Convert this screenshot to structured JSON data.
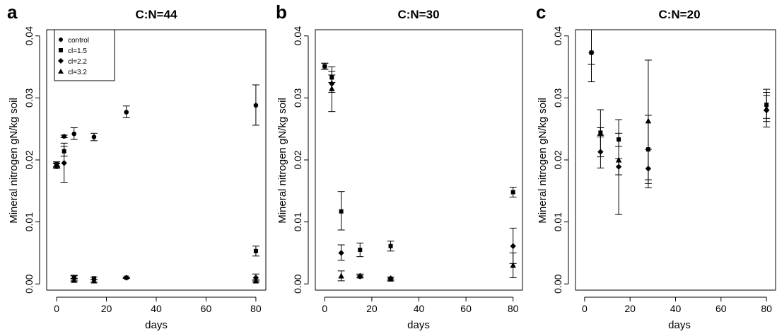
{
  "figure": {
    "panels": [
      {
        "letter": "a",
        "title": "C:N=44",
        "xlabel": "days",
        "ylabel": "Mineral nitrogen gN/kg soil"
      },
      {
        "letter": "b",
        "title": "C:N=30",
        "xlabel": "days",
        "ylabel": "Mineral nitrogen gN/kg soil"
      },
      {
        "letter": "c",
        "title": "C:N=20",
        "xlabel": "days",
        "ylabel": "Mineral nitrogen gN/kg soil"
      }
    ],
    "legend": {
      "entries": [
        {
          "label": "control",
          "symbol": "circle"
        },
        {
          "label": "cl=1.5",
          "symbol": "square"
        },
        {
          "label": "cl=2.2",
          "symbol": "diamond"
        },
        {
          "label": "cl=3.2",
          "symbol": "triangle"
        }
      ]
    }
  },
  "chart_data": [
    {
      "type": "scatter",
      "title": "C:N=44",
      "xlabel": "days",
      "ylabel": "Mineral nitrogen gN/kg soil",
      "xlim": [
        -4,
        84
      ],
      "ylim": [
        -0.001,
        0.041
      ],
      "xticks": [
        0,
        20,
        40,
        60,
        80
      ],
      "yticks": [
        0.0,
        0.01,
        0.02,
        0.03,
        0.04
      ],
      "ytick_labels": [
        "0.00",
        "0.01",
        "0.02",
        "0.03",
        "0.04"
      ],
      "legend": "top-left",
      "series": [
        {
          "name": "control",
          "symbol": "circle",
          "points": [
            {
              "x": 0,
              "y": 0.019,
              "lo": 0.0186,
              "hi": 0.0194
            },
            {
              "x": 3,
              "y": 0.0238,
              "lo": 0.0236,
              "hi": 0.024
            },
            {
              "x": 7,
              "y": 0.0242,
              "lo": 0.0233,
              "hi": 0.0252
            },
            {
              "x": 15,
              "y": 0.0237,
              "lo": 0.0231,
              "hi": 0.0243
            },
            {
              "x": 28,
              "y": 0.0277,
              "lo": 0.0268,
              "hi": 0.0287
            },
            {
              "x": 80,
              "y": 0.0288,
              "lo": 0.0256,
              "hi": 0.0321
            }
          ]
        },
        {
          "name": "cl=1.5",
          "symbol": "square",
          "points": [
            {
              "x": 0,
              "y": 0.0193,
              "lo": 0.0189,
              "hi": 0.0197
            },
            {
              "x": 3,
              "y": 0.0214,
              "lo": 0.0206,
              "hi": 0.0222
            },
            {
              "x": 7,
              "y": 0.0011,
              "lo": 0.0008,
              "hi": 0.0014
            },
            {
              "x": 15,
              "y": 0.0009,
              "lo": 0.0007,
              "hi": 0.0011
            },
            {
              "x": 28,
              "y": 0.001,
              "lo": 0.0009,
              "hi": 0.0011
            },
            {
              "x": 80,
              "y": 0.0053,
              "lo": 0.0045,
              "hi": 0.0061
            }
          ]
        },
        {
          "name": "cl=2.2",
          "symbol": "diamond",
          "points": [
            {
              "x": 0,
              "y": 0.0191,
              "lo": 0.0188,
              "hi": 0.0195
            },
            {
              "x": 3,
              "y": 0.0195,
              "lo": 0.0164,
              "hi": 0.0227
            },
            {
              "x": 7,
              "y": 0.0009,
              "lo": 0.0005,
              "hi": 0.0013
            },
            {
              "x": 15,
              "y": 0.0007,
              "lo": 0.0003,
              "hi": 0.0011
            },
            {
              "x": 28,
              "y": 0.001,
              "lo": 0.0009,
              "hi": 0.0011
            },
            {
              "x": 80,
              "y": 0.001,
              "lo": 0.0005,
              "hi": 0.0016
            }
          ]
        },
        {
          "name": "cl=3.2",
          "symbol": "triangle",
          "points": [
            {
              "x": 7,
              "y": 0.0006,
              "lo": 0.0003,
              "hi": 0.0009
            },
            {
              "x": 15,
              "y": 0.0005,
              "lo": 0.0003,
              "hi": 0.0007
            },
            {
              "x": 80,
              "y": 0.0005,
              "lo": 0.0003,
              "hi": 0.0007
            }
          ]
        }
      ]
    },
    {
      "type": "scatter",
      "title": "C:N=30",
      "xlabel": "days",
      "ylabel": "Mineral nitrogen gN/kg soil",
      "xlim": [
        -4,
        84
      ],
      "ylim": [
        -0.001,
        0.041
      ],
      "xticks": [
        0,
        20,
        40,
        60,
        80
      ],
      "yticks": [
        0.0,
        0.01,
        0.02,
        0.03,
        0.04
      ],
      "ytick_labels": [
        "0.00",
        "0.01",
        "0.02",
        "0.03",
        "0.04"
      ],
      "series": [
        {
          "name": "control",
          "symbol": "circle",
          "points": [
            {
              "x": 0,
              "y": 0.0351,
              "lo": 0.0346,
              "hi": 0.0356
            }
          ]
        },
        {
          "name": "cl=1.5",
          "symbol": "square",
          "points": [
            {
              "x": 0,
              "y": 0.0351,
              "lo": 0.0346,
              "hi": 0.0356
            },
            {
              "x": 3,
              "y": 0.0333,
              "lo": 0.0325,
              "hi": 0.0343
            },
            {
              "x": 7,
              "y": 0.0117,
              "lo": 0.0087,
              "hi": 0.0149
            },
            {
              "x": 15,
              "y": 0.0055,
              "lo": 0.0044,
              "hi": 0.0066
            },
            {
              "x": 28,
              "y": 0.0061,
              "lo": 0.0053,
              "hi": 0.0069
            },
            {
              "x": 80,
              "y": 0.0148,
              "lo": 0.014,
              "hi": 0.0156
            }
          ]
        },
        {
          "name": "cl=2.2",
          "symbol": "diamond",
          "points": [
            {
              "x": 3,
              "y": 0.0323,
              "lo": 0.0309,
              "hi": 0.0337
            },
            {
              "x": 7,
              "y": 0.005,
              "lo": 0.0038,
              "hi": 0.0063
            },
            {
              "x": 15,
              "y": 0.0012,
              "lo": 0.001,
              "hi": 0.0014
            },
            {
              "x": 28,
              "y": 0.0009,
              "lo": 0.0007,
              "hi": 0.0011
            },
            {
              "x": 80,
              "y": 0.0061,
              "lo": 0.0033,
              "hi": 0.009
            }
          ]
        },
        {
          "name": "cl=3.2",
          "symbol": "triangle",
          "points": [
            {
              "x": 3,
              "y": 0.0315,
              "lo": 0.0278,
              "hi": 0.035
            },
            {
              "x": 7,
              "y": 0.0013,
              "lo": 0.0005,
              "hi": 0.0021
            },
            {
              "x": 15,
              "y": 0.0013,
              "lo": 0.001,
              "hi": 0.0016
            },
            {
              "x": 28,
              "y": 0.0008,
              "lo": 0.0005,
              "hi": 0.0011
            },
            {
              "x": 80,
              "y": 0.003,
              "lo": 0.001,
              "hi": 0.005
            }
          ]
        }
      ]
    },
    {
      "type": "scatter",
      "title": "C:N=20",
      "xlabel": "days",
      "ylabel": "Mineral nitrogen gN/kg soil",
      "xlim": [
        -4,
        84
      ],
      "ylim": [
        -0.001,
        0.041
      ],
      "xticks": [
        0,
        20,
        40,
        60,
        80
      ],
      "yticks": [
        0.0,
        0.01,
        0.02,
        0.03,
        0.04
      ],
      "ytick_labels": [
        "0.00",
        "0.01",
        "0.02",
        "0.03",
        "0.04"
      ],
      "series": [
        {
          "name": "cl=1.5",
          "symbol": "square",
          "points": [
            {
              "x": 3,
              "y": 0.0373,
              "lo": 0.0354,
              "hi": 0.042
            },
            {
              "x": 7,
              "y": 0.0244,
              "lo": 0.0237,
              "hi": 0.0252
            },
            {
              "x": 15,
              "y": 0.0233,
              "lo": 0.0222,
              "hi": 0.0243
            },
            {
              "x": 28,
              "y": 0.0217,
              "lo": 0.0162,
              "hi": 0.0272
            },
            {
              "x": 80,
              "y": 0.0289,
              "lo": 0.0267,
              "hi": 0.0314
            }
          ]
        },
        {
          "name": "cl=2.2",
          "symbol": "diamond",
          "points": [
            {
              "x": 3,
              "y": 0.0373,
              "lo": 0.0326,
              "hi": 0.042
            },
            {
              "x": 7,
              "y": 0.0213,
              "lo": 0.0187,
              "hi": 0.024
            },
            {
              "x": 15,
              "y": 0.0189,
              "lo": 0.0176,
              "hi": 0.0202
            },
            {
              "x": 28,
              "y": 0.0186,
              "lo": 0.0155,
              "hi": 0.0217
            },
            {
              "x": 80,
              "y": 0.028,
              "lo": 0.0253,
              "hi": 0.0309
            }
          ]
        },
        {
          "name": "cl=3.2",
          "symbol": "triangle",
          "points": [
            {
              "x": 7,
              "y": 0.0243,
              "lo": 0.0205,
              "hi": 0.0281
            },
            {
              "x": 15,
              "y": 0.02,
              "lo": 0.0112,
              "hi": 0.0265
            },
            {
              "x": 28,
              "y": 0.0263,
              "lo": 0.0168,
              "hi": 0.0361
            },
            {
              "x": 80,
              "y": 0.0283,
              "lo": 0.0262,
              "hi": 0.0304
            }
          ]
        }
      ]
    }
  ]
}
